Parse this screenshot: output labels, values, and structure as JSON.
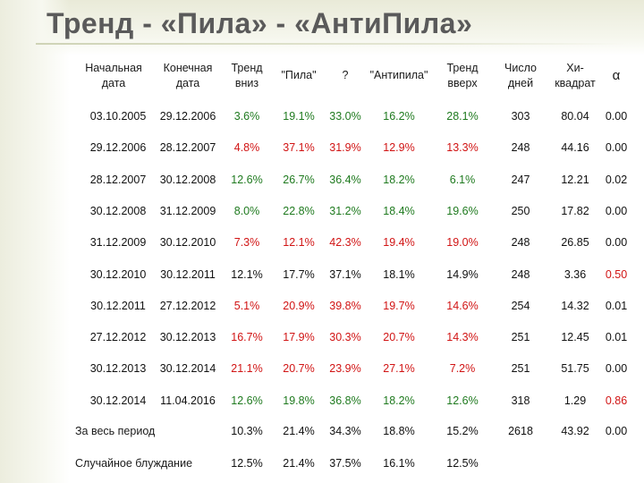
{
  "title": "Тренд - «Пила» - «АнтиПила»",
  "colors": {
    "green": "#1f7a1f",
    "red": "#d11414",
    "black": "#111111",
    "title": "#5a5a5a"
  },
  "headers": [
    "Начальная\nдата",
    "Конечная\nдата",
    "Тренд\nвниз",
    "\"Пила\"",
    "?",
    "\"Антипила\"",
    "Тренд\nвверх",
    "Число\nдней",
    "Хи-\nквадрат",
    "α"
  ],
  "rows": [
    {
      "start": "03.10.2005",
      "end": "29.12.2006",
      "down": "3.6%",
      "pila": "19.1%",
      "q": "33.0%",
      "anti": "16.2%",
      "up": "28.1%",
      "days": "303",
      "chi": "80.04",
      "alpha": "0.00",
      "colors": [
        "k",
        "k",
        "g",
        "g",
        "g",
        "g",
        "g",
        "k",
        "k",
        "k"
      ]
    },
    {
      "start": "29.12.2006",
      "end": "28.12.2007",
      "down": "4.8%",
      "pila": "37.1%",
      "q": "31.9%",
      "anti": "12.9%",
      "up": "13.3%",
      "days": "248",
      "chi": "44.16",
      "alpha": "0.00",
      "colors": [
        "k",
        "k",
        "r",
        "r",
        "r",
        "r",
        "r",
        "k",
        "k",
        "k"
      ]
    },
    {
      "start": "28.12.2007",
      "end": "30.12.2008",
      "down": "12.6%",
      "pila": "26.7%",
      "q": "36.4%",
      "anti": "18.2%",
      "up": "6.1%",
      "days": "247",
      "chi": "12.21",
      "alpha": "0.02",
      "colors": [
        "k",
        "k",
        "g",
        "g",
        "g",
        "g",
        "g",
        "k",
        "k",
        "k"
      ]
    },
    {
      "start": "30.12.2008",
      "end": "31.12.2009",
      "down": "8.0%",
      "pila": "22.8%",
      "q": "31.2%",
      "anti": "18.4%",
      "up": "19.6%",
      "days": "250",
      "chi": "17.82",
      "alpha": "0.00",
      "colors": [
        "k",
        "k",
        "g",
        "g",
        "g",
        "g",
        "g",
        "k",
        "k",
        "k"
      ]
    },
    {
      "start": "31.12.2009",
      "end": "30.12.2010",
      "down": "7.3%",
      "pila": "12.1%",
      "q": "42.3%",
      "anti": "19.4%",
      "up": "19.0%",
      "days": "248",
      "chi": "26.85",
      "alpha": "0.00",
      "colors": [
        "k",
        "k",
        "r",
        "r",
        "r",
        "r",
        "r",
        "k",
        "k",
        "k"
      ]
    },
    {
      "start": "30.12.2010",
      "end": "30.12.2011",
      "down": "12.1%",
      "pila": "17.7%",
      "q": "37.1%",
      "anti": "18.1%",
      "up": "14.9%",
      "days": "248",
      "chi": "3.36",
      "alpha": "0.50",
      "colors": [
        "k",
        "k",
        "k",
        "k",
        "k",
        "k",
        "k",
        "k",
        "k",
        "r"
      ]
    },
    {
      "start": "30.12.2011",
      "end": "27.12.2012",
      "down": "5.1%",
      "pila": "20.9%",
      "q": "39.8%",
      "anti": "19.7%",
      "up": "14.6%",
      "days": "254",
      "chi": "14.32",
      "alpha": "0.01",
      "colors": [
        "k",
        "k",
        "r",
        "r",
        "r",
        "r",
        "r",
        "k",
        "k",
        "k"
      ]
    },
    {
      "start": "27.12.2012",
      "end": "30.12.2013",
      "down": "16.7%",
      "pila": "17.9%",
      "q": "30.3%",
      "anti": "20.7%",
      "up": "14.3%",
      "days": "251",
      "chi": "12.45",
      "alpha": "0.01",
      "colors": [
        "k",
        "k",
        "r",
        "r",
        "r",
        "r",
        "r",
        "k",
        "k",
        "k"
      ]
    },
    {
      "start": "30.12.2013",
      "end": "30.12.2014",
      "down": "21.1%",
      "pila": "20.7%",
      "q": "23.9%",
      "anti": "27.1%",
      "up": "7.2%",
      "days": "251",
      "chi": "51.75",
      "alpha": "0.00",
      "colors": [
        "k",
        "k",
        "r",
        "r",
        "r",
        "r",
        "r",
        "k",
        "k",
        "k"
      ]
    },
    {
      "start": "30.12.2014",
      "end": "11.04.2016",
      "down": "12.6%",
      "pila": "19.8%",
      "q": "36.8%",
      "anti": "18.2%",
      "up": "12.6%",
      "days": "318",
      "chi": "1.29",
      "alpha": "0.86",
      "colors": [
        "k",
        "k",
        "g",
        "g",
        "g",
        "g",
        "g",
        "k",
        "k",
        "r"
      ]
    }
  ],
  "totals": [
    {
      "label": "За весь период",
      "down": "10.3%",
      "pila": "21.4%",
      "q": "34.3%",
      "anti": "18.8%",
      "up": "15.2%",
      "days": "2618",
      "chi": "43.92",
      "alpha": "0.00"
    },
    {
      "label": "Случайное блуждание",
      "down": "12.5%",
      "pila": "21.4%",
      "q": "37.5%",
      "anti": "16.1%",
      "up": "12.5%",
      "days": "",
      "chi": "",
      "alpha": ""
    }
  ]
}
